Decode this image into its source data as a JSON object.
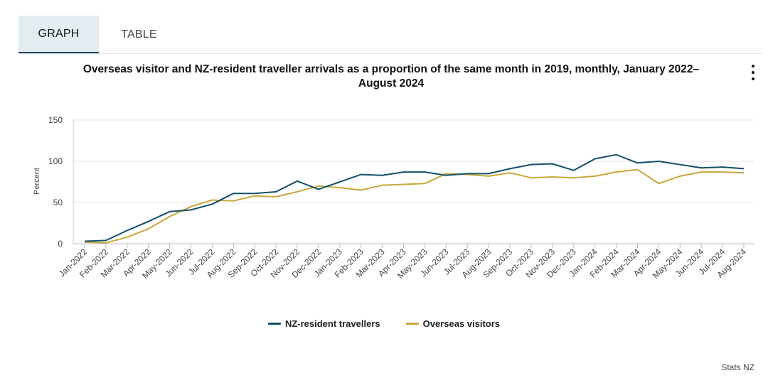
{
  "tabs": [
    {
      "label": "GRAPH",
      "active": true
    },
    {
      "label": "TABLE",
      "active": false
    }
  ],
  "credit": "Stats NZ",
  "colors": {
    "nz_resident": "#13506a",
    "overseas": "#c9a73a",
    "grid": "#e4e4e4"
  },
  "chart_data": {
    "type": "line",
    "title": "Overseas visitor and NZ-resident traveller arrivals as a proportion of the same month in 2019, monthly, January 2022–August 2024",
    "xlabel": "",
    "ylabel": "Percent",
    "ylim": [
      0,
      150
    ],
    "yticks": [
      0,
      50,
      100,
      150
    ],
    "grid": true,
    "legend": "bottom",
    "x": [
      "Jan-2022",
      "Feb-2022",
      "Mar-2022",
      "Apr-2022",
      "May-2022",
      "Jun-2022",
      "Jul-2022",
      "Aug-2022",
      "Sep-2022",
      "Oct-2022",
      "Nov-2022",
      "Dec-2022",
      "Jan-2023",
      "Feb-2023",
      "Mar-2023",
      "Apr-2023",
      "May-2023",
      "Jun-2023",
      "Jul-2023",
      "Aug-2023",
      "Sep-2023",
      "Oct-2023",
      "Nov-2023",
      "Dec-2023",
      "Jan-2024",
      "Feb-2024",
      "Mar-2024",
      "Apr-2024",
      "May-2024",
      "Jun-2024",
      "Jul-2024",
      "Aug-2024"
    ],
    "series": [
      {
        "name": "NZ-resident travellers",
        "values": [
          3,
          4,
          16,
          27,
          39,
          41,
          48,
          61,
          61,
          63,
          76,
          66,
          75,
          84,
          83,
          87,
          87,
          83,
          85,
          85,
          91,
          96,
          97,
          89,
          103,
          108,
          98,
          100,
          96,
          92,
          93,
          91
        ]
      },
      {
        "name": "Overseas visitors",
        "values": [
          2,
          1,
          8,
          18,
          33,
          45,
          53,
          52,
          58,
          57,
          63,
          70,
          68,
          65,
          71,
          72,
          73,
          85,
          84,
          82,
          86,
          80,
          81,
          80,
          82,
          87,
          90,
          73,
          82,
          87,
          87,
          86
        ]
      }
    ]
  }
}
